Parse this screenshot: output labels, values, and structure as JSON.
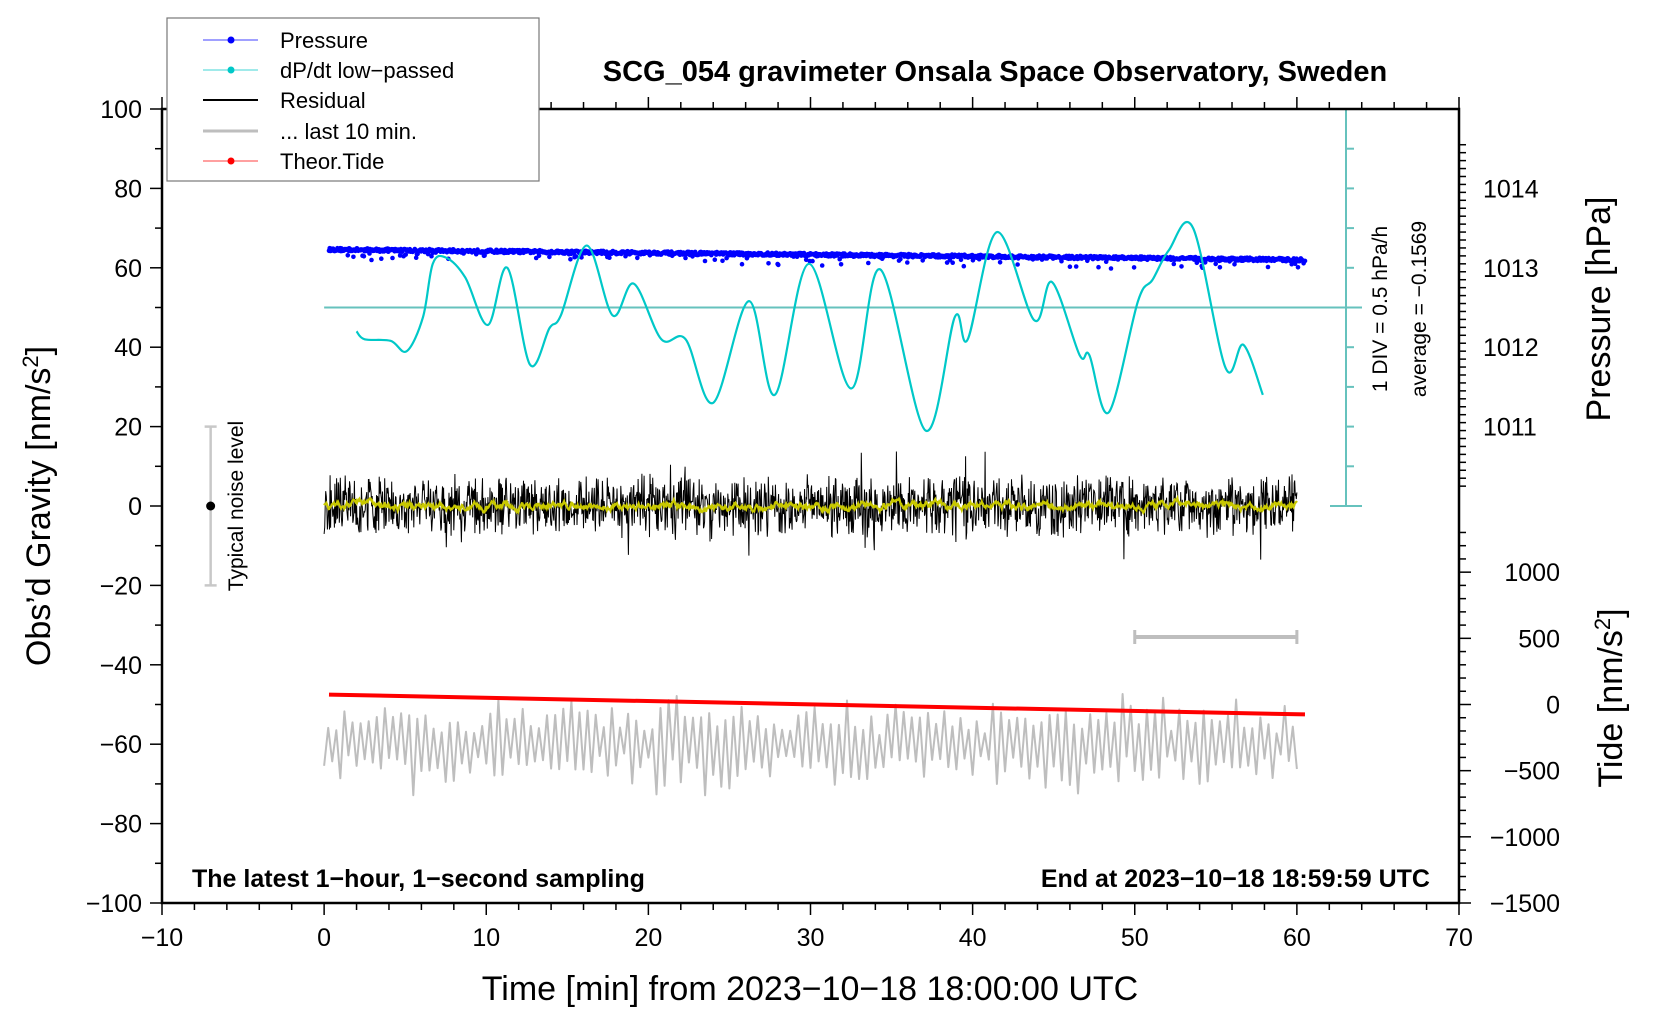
{
  "chart_data": {
    "type": "line",
    "title": "SCG_054 gravimeter Onsala Space Observatory, Sweden",
    "xlabel": "Time [min] from 2023−10−18 18:00:00 UTC",
    "ylabel": "Obs’d Gravity [nm/s",
    "ylabel_sup": "2",
    "ylabel_end": "]",
    "y2label": "Pressure [hPa]",
    "y3label": "Tide [nm/s",
    "y3label_sup": "2",
    "y3label_end": "]",
    "xlim": [
      -10,
      70
    ],
    "ylim": [
      -100,
      100
    ],
    "xticks": [
      -10,
      0,
      10,
      20,
      30,
      40,
      50,
      60,
      70
    ],
    "yticks": [
      -100,
      -80,
      -60,
      -40,
      -20,
      0,
      20,
      40,
      60,
      80,
      100
    ],
    "pressure_ticks": [
      1011,
      1012,
      1013,
      1014
    ],
    "tide_ticks": [
      -1500,
      -1000,
      -500,
      0,
      500,
      1000
    ],
    "annotation_left": "The latest 1−hour, 1−second sampling",
    "annotation_right": "End at 2023−10−18 18:59:59 UTC",
    "div_label": "1 DIV = 0.5 hPa/h",
    "average_label": "average = −0.1569",
    "noise_label": "Typical noise level",
    "noise_bar": {
      "x": -7,
      "center": 0,
      "half_range": 20
    },
    "last10_bar": {
      "x_start": 50,
      "x_end": 60,
      "y": -33
    },
    "legend": {
      "position": "top-left",
      "entries": [
        {
          "label": "Pressure",
          "color": "#0000ff",
          "marker": "dot"
        },
        {
          "label": "dP/dt low−passed",
          "color": "#00c8c8",
          "marker": "dot"
        },
        {
          "label": "Residual",
          "color": "#000000",
          "marker": "line"
        },
        {
          "label": "... last 10 min.",
          "color": "#bebebe",
          "marker": "line"
        },
        {
          "label": "Theor.Tide",
          "color": "#ff0000",
          "marker": "dot"
        }
      ]
    },
    "series": [
      {
        "name": "Pressure",
        "unit": "hPa",
        "x_range": [
          0.3,
          60.5
        ],
        "start": 1013.23,
        "end": 1013.1,
        "scatter": 0.05
      },
      {
        "name": "dP/dt low-passed",
        "unit": "hPa/h",
        "x": [
          2,
          2.5,
          4.1,
          5.1,
          6.1,
          6.7,
          7.5,
          8.7,
          10.1,
          11.3,
          12.7,
          13.9,
          14.6,
          16.2,
          17.8,
          19.1,
          20.8,
          22.3,
          24,
          26.2,
          27.8,
          29.9,
          32.5,
          34.3,
          37.1,
          38.9,
          39.7,
          41.5,
          43.8,
          44.9,
          46.6,
          47.2,
          48.4,
          50.2,
          51.1,
          52.1,
          53.6,
          55.6,
          56.7,
          57.9
        ],
        "values": [
          -0.3,
          -0.4,
          -0.42,
          -0.55,
          -0.12,
          0.55,
          0.63,
          0.38,
          -0.22,
          0.5,
          -0.72,
          -0.26,
          -0.1,
          0.78,
          -0.1,
          0.3,
          -0.4,
          -0.4,
          -1.2,
          0.08,
          -1.1,
          0.55,
          -1.02,
          0.48,
          -1.55,
          -0.12,
          -0.4,
          0.95,
          -0.16,
          0.32,
          -0.6,
          -0.6,
          -1.32,
          0.08,
          0.35,
          0.72,
          1.0,
          -0.76,
          -0.47,
          -1.1
        ]
      },
      {
        "name": "Residual",
        "unit": "nm/s2",
        "x_range": [
          0,
          60
        ],
        "center": 0,
        "amplitude": 10
      },
      {
        "name": "... last 10 min.",
        "unit": "nm/s2",
        "x_range": [
          0,
          60
        ],
        "center": -60,
        "amplitude": 12
      },
      {
        "name": "Theor.Tide",
        "unit": "nm/s2",
        "x": [
          0.3,
          60.5
        ],
        "values": [
          75,
          -75
        ]
      }
    ],
    "colors": {
      "pressure": "#0000ff",
      "dpdt": "#00c8c8",
      "dpdt_axis": "#66c2bd",
      "residual": "#000000",
      "smooth": "#c8c800",
      "last10": "#bebebe",
      "tide": "#ff0000"
    }
  }
}
